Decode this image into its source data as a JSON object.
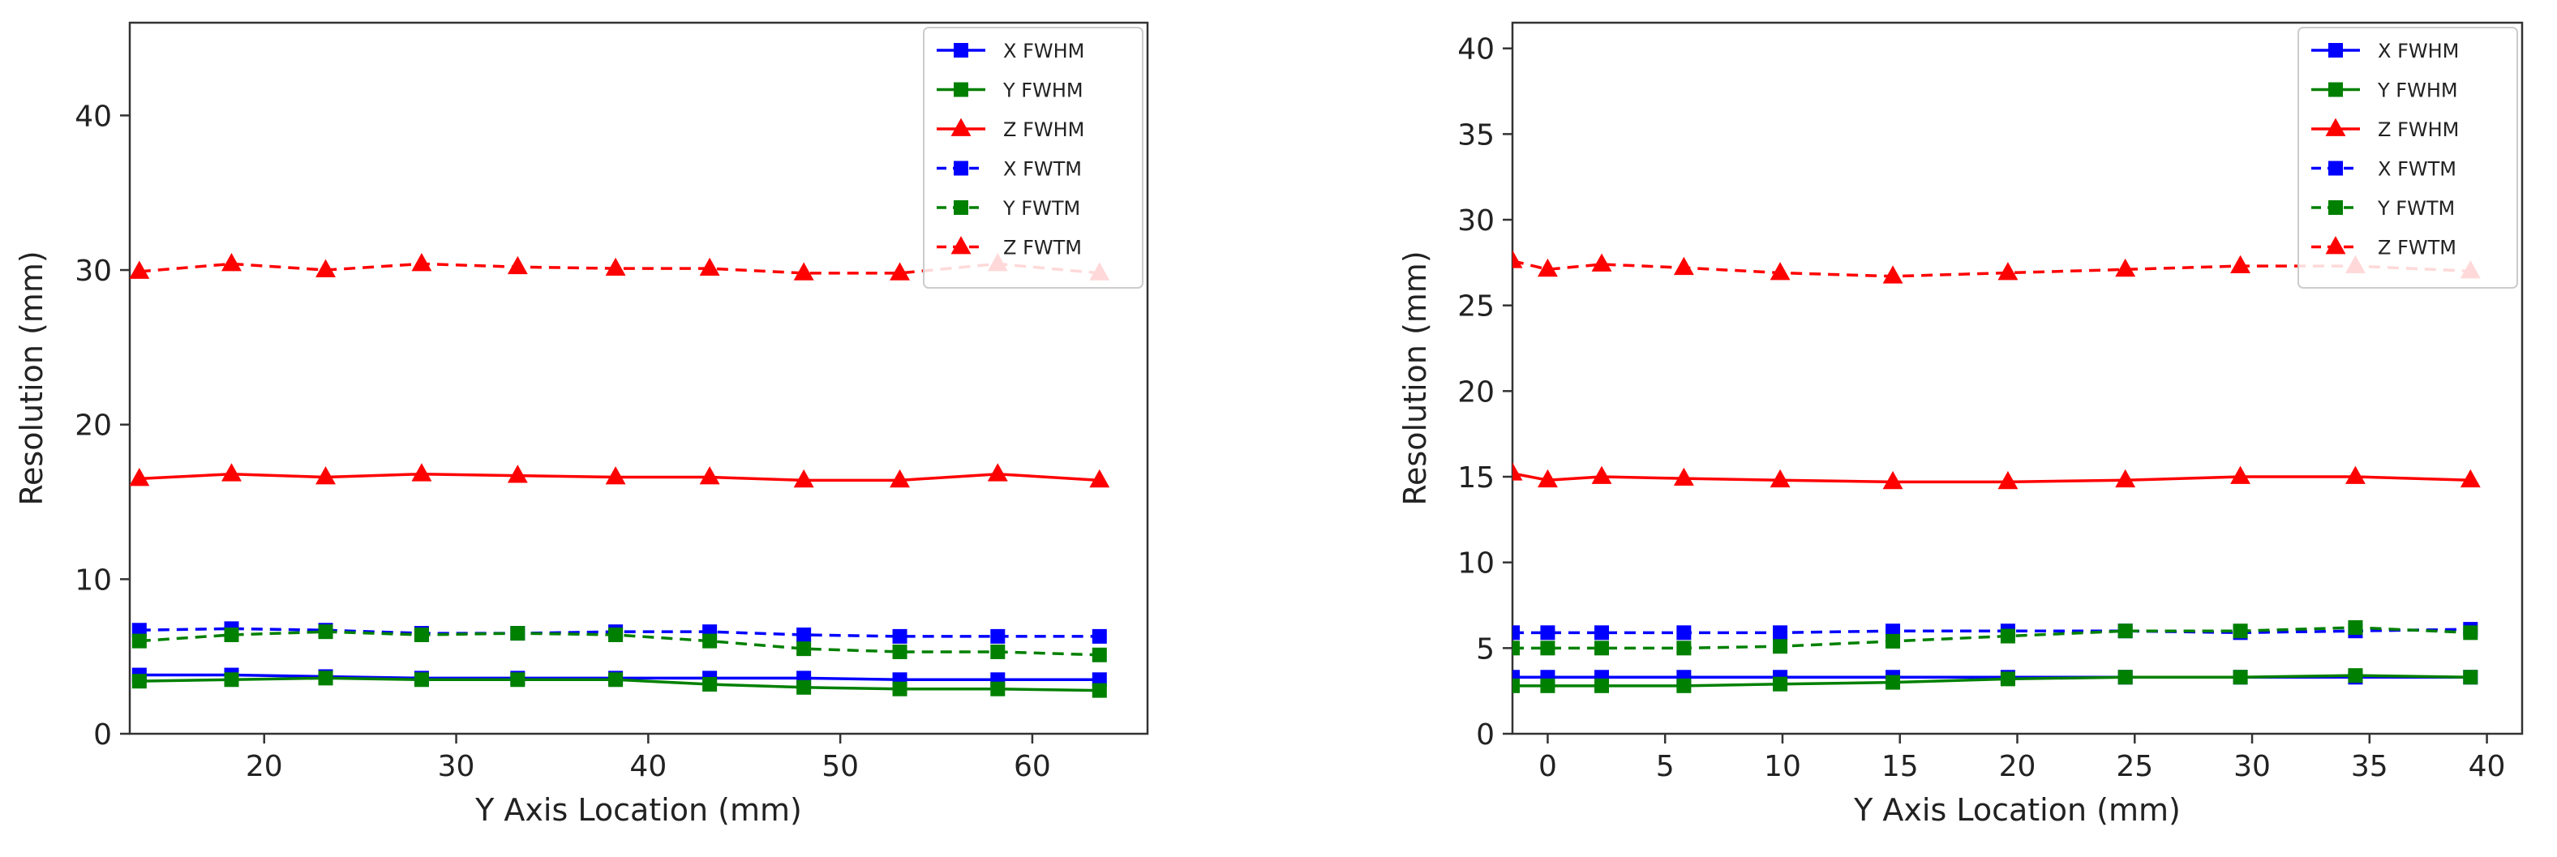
{
  "chart_data": [
    {
      "type": "line",
      "xlabel": "Y Axis Location (mm)",
      "ylabel": "Resolution (mm)",
      "xlim": [
        13,
        66
      ],
      "ylim": [
        0,
        46
      ],
      "xticks": [
        20,
        30,
        40,
        50,
        60
      ],
      "yticks": [
        0,
        10,
        20,
        30,
        40
      ],
      "grid": false,
      "legend": "top-right",
      "x": [
        13.5,
        18.3,
        23.2,
        28.2,
        33.2,
        38.3,
        43.2,
        48.1,
        53.1,
        58.2,
        63.5
      ],
      "series": [
        {
          "name": "X FWHM",
          "color": "#0000ff",
          "marker": "square",
          "dashed": false,
          "values": [
            3.8,
            3.8,
            3.7,
            3.6,
            3.6,
            3.6,
            3.6,
            3.6,
            3.5,
            3.5,
            3.5
          ]
        },
        {
          "name": "Y FWHM",
          "color": "#008000",
          "marker": "square",
          "dashed": false,
          "values": [
            3.4,
            3.5,
            3.6,
            3.5,
            3.5,
            3.5,
            3.2,
            3.0,
            2.9,
            2.9,
            2.8
          ]
        },
        {
          "name": "Z FWHM",
          "color": "#ff0000",
          "marker": "triangle",
          "dashed": false,
          "values": [
            16.5,
            16.8,
            16.6,
            16.8,
            16.7,
            16.6,
            16.6,
            16.4,
            16.4,
            16.8,
            16.4
          ]
        },
        {
          "name": "X FWTM",
          "color": "#0000ff",
          "marker": "square",
          "dashed": true,
          "values": [
            6.7,
            6.8,
            6.7,
            6.5,
            6.5,
            6.6,
            6.6,
            6.4,
            6.3,
            6.3,
            6.3
          ]
        },
        {
          "name": "Y FWTM",
          "color": "#008000",
          "marker": "square",
          "dashed": true,
          "values": [
            6.0,
            6.4,
            6.6,
            6.4,
            6.5,
            6.4,
            6.0,
            5.5,
            5.3,
            5.3,
            5.1
          ]
        },
        {
          "name": "Z FWTM",
          "color": "#ff0000",
          "marker": "triangle",
          "dashed": true,
          "values": [
            29.9,
            30.4,
            30.0,
            30.4,
            30.2,
            30.1,
            30.1,
            29.8,
            29.8,
            30.4,
            29.8
          ]
        }
      ]
    },
    {
      "type": "line",
      "xlabel": "Y Axis Location (mm)",
      "ylabel": "Resolution (mm)",
      "xlim": [
        -1.5,
        41.5
      ],
      "ylim": [
        0,
        41.5
      ],
      "xticks": [
        0,
        5,
        10,
        15,
        20,
        25,
        30,
        35,
        40
      ],
      "yticks": [
        0,
        5,
        10,
        15,
        20,
        25,
        30,
        35,
        40
      ],
      "grid": false,
      "legend": "top-right",
      "x": [
        -1.5,
        0,
        2.3,
        5.8,
        9.9,
        14.7,
        19.6,
        24.6,
        29.5,
        34.4,
        39.3
      ],
      "series": [
        {
          "name": "X FWHM",
          "color": "#0000ff",
          "marker": "square",
          "dashed": false,
          "values": [
            3.3,
            3.3,
            3.3,
            3.3,
            3.3,
            3.3,
            3.3,
            3.3,
            3.3,
            3.3,
            3.3
          ]
        },
        {
          "name": "Y FWHM",
          "color": "#008000",
          "marker": "square",
          "dashed": false,
          "values": [
            2.8,
            2.8,
            2.8,
            2.8,
            2.9,
            3.0,
            3.2,
            3.3,
            3.3,
            3.4,
            3.3
          ]
        },
        {
          "name": "Z FWHM",
          "color": "#ff0000",
          "marker": "triangle",
          "dashed": false,
          "values": [
            15.2,
            14.8,
            15.0,
            14.9,
            14.8,
            14.7,
            14.7,
            14.8,
            15.0,
            15.0,
            14.8
          ]
        },
        {
          "name": "X FWTM",
          "color": "#0000ff",
          "marker": "square",
          "dashed": true,
          "values": [
            5.9,
            5.9,
            5.9,
            5.9,
            5.9,
            6.0,
            6.0,
            6.0,
            5.9,
            6.0,
            6.1
          ]
        },
        {
          "name": "Y FWTM",
          "color": "#008000",
          "marker": "square",
          "dashed": true,
          "values": [
            5.0,
            5.0,
            5.0,
            5.0,
            5.1,
            5.4,
            5.7,
            6.0,
            6.0,
            6.2,
            5.9
          ]
        },
        {
          "name": "Z FWTM",
          "color": "#ff0000",
          "marker": "triangle",
          "dashed": true,
          "values": [
            27.6,
            27.1,
            27.4,
            27.2,
            26.9,
            26.7,
            26.9,
            27.1,
            27.3,
            27.3,
            27.0
          ]
        }
      ]
    }
  ]
}
